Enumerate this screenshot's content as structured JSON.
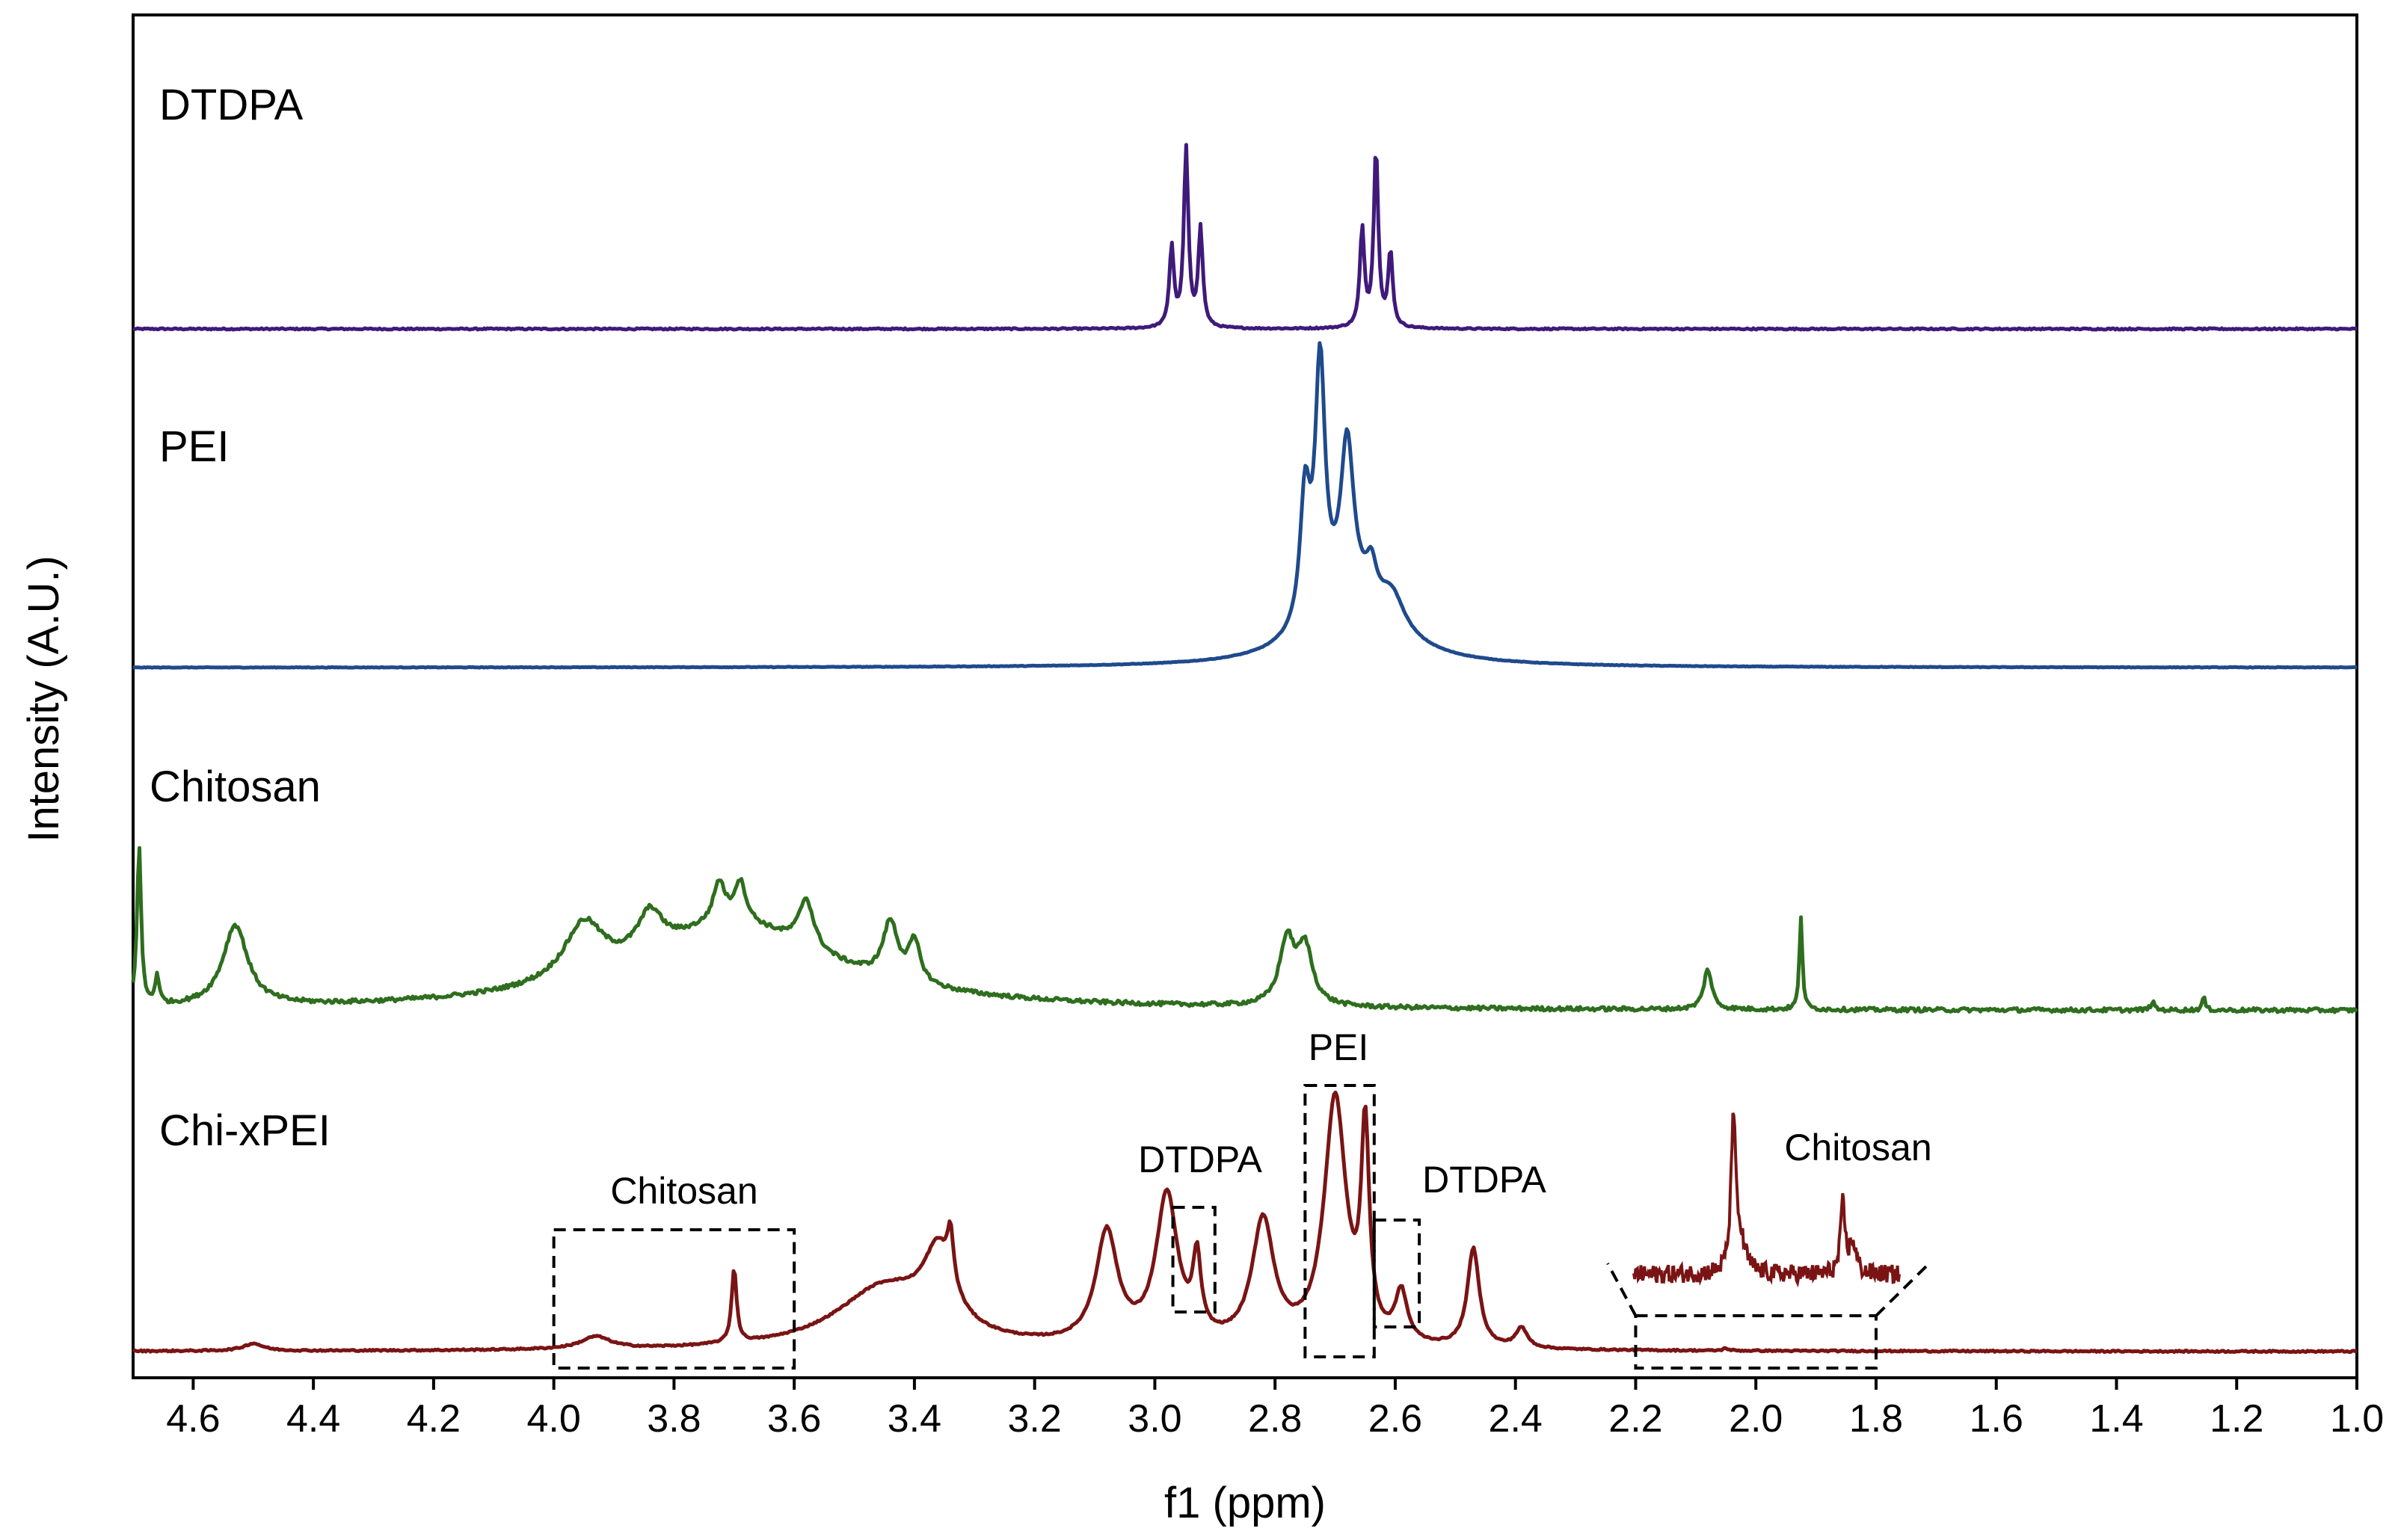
{
  "chart_data": {
    "type": "line",
    "xlabel": "f1 (ppm)",
    "ylabel": "Intensity (A.U.)",
    "xlim": [
      4.7,
      1.0
    ],
    "x_reversed": true,
    "x_ticks": [
      "4.6",
      "4.4",
      "4.2",
      "4.0",
      "3.8",
      "3.6",
      "3.4",
      "3.2",
      "3.0",
      "2.8",
      "2.6",
      "2.4",
      "2.2",
      "2.0",
      "1.8",
      "1.6",
      "1.4",
      "1.2",
      "1.0"
    ],
    "x_tick_values": [
      4.6,
      4.4,
      4.2,
      4.0,
      3.8,
      3.6,
      3.4,
      3.2,
      3.0,
      2.8,
      2.6,
      2.4,
      2.2,
      2.0,
      1.8,
      1.6,
      1.4,
      1.2,
      1.0
    ],
    "grid": false,
    "series": [
      {
        "name": "DTDPA",
        "color": "#3f1a7a",
        "peaks": [
          {
            "x": 2.972,
            "h": 0.45,
            "w": 0.0045
          },
          {
            "x": 2.948,
            "h": 1.0,
            "w": 0.0045
          },
          {
            "x": 2.924,
            "h": 0.55,
            "w": 0.0045
          },
          {
            "x": 2.655,
            "h": 0.55,
            "w": 0.0045
          },
          {
            "x": 2.632,
            "h": 1.0,
            "w": 0.0045
          },
          {
            "x": 2.608,
            "h": 0.42,
            "w": 0.0045
          }
        ]
      },
      {
        "name": "PEI",
        "color": "#1f4a8c",
        "peaks": [
          {
            "x": 2.67,
            "h": 0.22,
            "w": 0.08
          },
          {
            "x": 2.605,
            "h": 0.12,
            "w": 0.025
          },
          {
            "x": 2.75,
            "h": 0.45,
            "w": 0.01
          },
          {
            "x": 2.725,
            "h": 0.88,
            "w": 0.01
          },
          {
            "x": 2.68,
            "h": 0.55,
            "w": 0.013
          },
          {
            "x": 2.64,
            "h": 0.12,
            "w": 0.01
          }
        ]
      },
      {
        "name": "Chitosan",
        "color": "#2e6e1e",
        "peaks": [
          {
            "x": 4.69,
            "h": 1.0,
            "w": 0.004
          },
          {
            "x": 4.66,
            "h": 0.18,
            "w": 0.004
          },
          {
            "x": 4.53,
            "h": 0.5,
            "w": 0.025
          },
          {
            "x": 3.7,
            "h": 0.52,
            "w": 0.2
          },
          {
            "x": 3.95,
            "h": 0.35,
            "w": 0.04
          },
          {
            "x": 3.84,
            "h": 0.25,
            "w": 0.025
          },
          {
            "x": 3.725,
            "h": 0.25,
            "w": 0.012
          },
          {
            "x": 3.69,
            "h": 0.25,
            "w": 0.012
          },
          {
            "x": 3.58,
            "h": 0.3,
            "w": 0.015
          },
          {
            "x": 3.44,
            "h": 0.35,
            "w": 0.015
          },
          {
            "x": 3.4,
            "h": 0.25,
            "w": 0.012
          },
          {
            "x": 2.78,
            "h": 0.4,
            "w": 0.015
          },
          {
            "x": 2.75,
            "h": 0.35,
            "w": 0.015
          },
          {
            "x": 2.08,
            "h": 0.25,
            "w": 0.008
          },
          {
            "x": 1.925,
            "h": 0.58,
            "w": 0.003
          },
          {
            "x": 1.255,
            "h": 0.08,
            "w": 0.003
          },
          {
            "x": 1.34,
            "h": 0.05,
            "w": 0.004
          }
        ]
      },
      {
        "name": "Chi-xPEI",
        "color": "#7a1414",
        "peaks": [
          {
            "x": 4.5,
            "h": 0.03,
            "w": 0.02
          },
          {
            "x": 3.93,
            "h": 0.05,
            "w": 0.03
          },
          {
            "x": 3.7,
            "h": 0.3,
            "w": 0.005
          },
          {
            "x": 3.45,
            "h": 0.25,
            "w": 0.1
          },
          {
            "x": 3.36,
            "h": 0.3,
            "w": 0.03
          },
          {
            "x": 3.34,
            "h": 0.2,
            "w": 0.006
          },
          {
            "x": 3.08,
            "h": 0.45,
            "w": 0.022
          },
          {
            "x": 2.98,
            "h": 0.6,
            "w": 0.022
          },
          {
            "x": 2.93,
            "h": 0.3,
            "w": 0.008
          },
          {
            "x": 2.82,
            "h": 0.5,
            "w": 0.022
          },
          {
            "x": 2.7,
            "h": 1.0,
            "w": 0.022
          },
          {
            "x": 2.65,
            "h": 0.82,
            "w": 0.008
          },
          {
            "x": 2.59,
            "h": 0.2,
            "w": 0.012
          },
          {
            "x": 2.47,
            "h": 0.4,
            "w": 0.012
          },
          {
            "x": 2.39,
            "h": 0.08,
            "w": 0.012
          },
          {
            "x": 2.05,
            "h": 0.01,
            "w": 0.005
          }
        ]
      }
    ],
    "annotations": [
      {
        "text": "Chitosan",
        "box": [
          4.0,
          3.6
        ]
      },
      {
        "text": "DTDPA",
        "box": [
          2.97,
          2.9
        ]
      },
      {
        "text": "PEI",
        "box": [
          2.75,
          2.635
        ]
      },
      {
        "text": "DTDPA",
        "box": [
          2.635,
          2.56
        ]
      },
      {
        "text": "Chitosan",
        "box": [
          2.2,
          1.8
        ],
        "inset": true
      }
    ]
  }
}
